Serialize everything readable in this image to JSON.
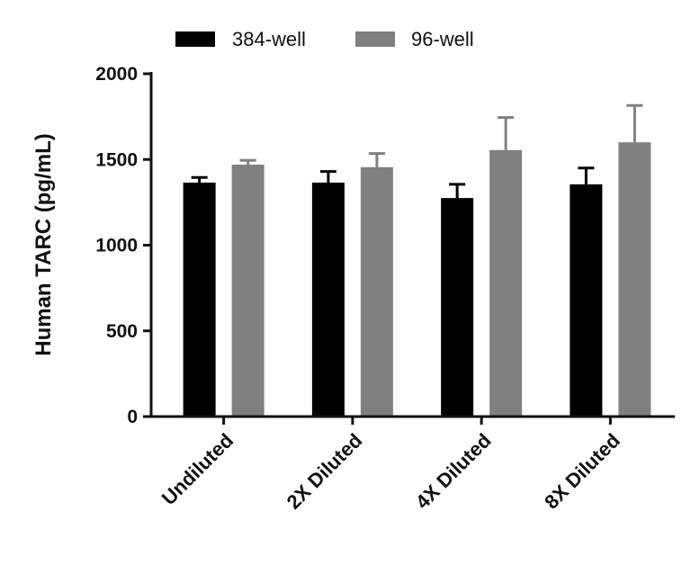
{
  "chart_data": {
    "type": "bar",
    "title": "",
    "xlabel": "",
    "ylabel": "Human TARC (pg/mL)",
    "ylim": [
      0,
      2000
    ],
    "yticks": [
      0,
      500,
      1000,
      1500,
      2000
    ],
    "grid": false,
    "legend_position": "top",
    "categories": [
      "Undiluted",
      "2X Diluted",
      "4X Diluted",
      "8X Diluted"
    ],
    "series": [
      {
        "name": "384-well",
        "color": "#000000",
        "values": [
          1365,
          1365,
          1275,
          1355
        ],
        "errors": [
          30,
          65,
          80,
          95
        ]
      },
      {
        "name": "96-well",
        "color": "#808080",
        "values": [
          1470,
          1455,
          1555,
          1600
        ],
        "errors": [
          25,
          80,
          190,
          215
        ]
      }
    ]
  }
}
